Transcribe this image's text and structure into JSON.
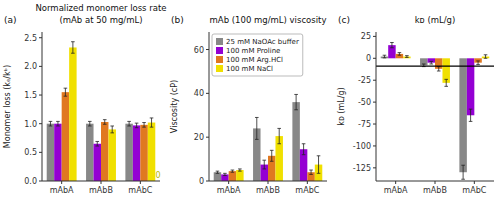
{
  "chart_data": [
    {
      "type": "bar",
      "panel_label": "(a)",
      "title": "Normalized monomer loss rate",
      "subtitle": "(mAb at 50 mg/mL)",
      "ylabel": "Monomer loss (kₑ/kᵇ)",
      "categories": [
        "mAbA",
        "mAbB",
        "mAbC"
      ],
      "series": [
        {
          "color": "#888888",
          "values": [
            1.0,
            1.0,
            1.0
          ],
          "errors": [
            0.04,
            0.04,
            0.04
          ]
        },
        {
          "color": "#9400D3",
          "values": [
            1.0,
            0.65,
            0.97
          ],
          "errors": [
            0.04,
            0.04,
            0.04
          ]
        },
        {
          "color": "#E07820",
          "values": [
            1.55,
            1.03,
            0.98
          ],
          "errors": [
            0.07,
            0.04,
            0.04
          ]
        },
        {
          "color": "#F0E000",
          "values": [
            2.33,
            0.9,
            1.02
          ],
          "errors": [
            0.1,
            0.06,
            0.08
          ]
        }
      ],
      "ylim": [
        0,
        2.6
      ],
      "yticks": [
        {
          "value": 0,
          "label": "0.0"
        },
        0.5,
        {
          "value": 1,
          "label": "1.0"
        },
        1.5,
        {
          "value": 2,
          "label": "2.0"
        },
        2.5
      ],
      "annotations": [
        {
          "text": "0",
          "color": "#B8B800"
        }
      ],
      "grid": false
    },
    {
      "type": "bar",
      "panel_label": "(b)",
      "title": "mAb (100 mg/mL) viscosity",
      "ylabel": "Viscosity (cP)",
      "categories": [
        "mAbA",
        "mAbB",
        "mAbC"
      ],
      "series": [
        {
          "name": "25 mM NaOAc buffer",
          "color": "#888888",
          "values": [
            4.0,
            24.0,
            36.0
          ],
          "errors": [
            0.5,
            5.0,
            3.5
          ]
        },
        {
          "name": "100 mM Proline",
          "color": "#9400D3",
          "values": [
            3.0,
            7.5,
            14.5
          ],
          "errors": [
            0.5,
            2.0,
            2.5
          ]
        },
        {
          "name": "100 mM Arg.HCl",
          "color": "#E07820",
          "values": [
            4.5,
            11.5,
            4.0
          ],
          "errors": [
            0.5,
            2.5,
            1.0
          ]
        },
        {
          "name": "100 mM NaCl",
          "color": "#F0E000",
          "values": [
            5.0,
            20.5,
            7.5
          ],
          "errors": [
            0.5,
            3.5,
            4.0
          ]
        }
      ],
      "ylim": [
        0,
        68
      ],
      "yticks": [
        0,
        20,
        40,
        60
      ],
      "legend": "upper left",
      "grid": false
    },
    {
      "type": "bar",
      "panel_label": "(c)",
      "title": "kᴅ (mL/g)",
      "ylabel": "kᴅ (mL/g)",
      "categories": [
        "mAbA",
        "mAbB",
        "mAbC"
      ],
      "series": [
        {
          "color": "#888888",
          "values": [
            2.0,
            -8.0,
            -130.0
          ],
          "errors": [
            1.5,
            1.5,
            8.0
          ]
        },
        {
          "color": "#9400D3",
          "values": [
            15.0,
            -5.0,
            -65.0
          ],
          "errors": [
            3.0,
            1.5,
            7.0
          ]
        },
        {
          "color": "#E07820",
          "values": [
            5.0,
            -12.0,
            -5.0
          ],
          "errors": [
            1.5,
            2.5,
            2.0
          ]
        },
        {
          "color": "#F0E000",
          "values": [
            2.0,
            -28.0,
            2.0
          ],
          "errors": [
            1.0,
            4.0,
            2.0
          ]
        }
      ],
      "ylim": [
        -140,
        30
      ],
      "yticks": [
        -125,
        -100,
        -75,
        -50,
        -25,
        0,
        25
      ],
      "hline": -8.9,
      "grid": false
    }
  ]
}
